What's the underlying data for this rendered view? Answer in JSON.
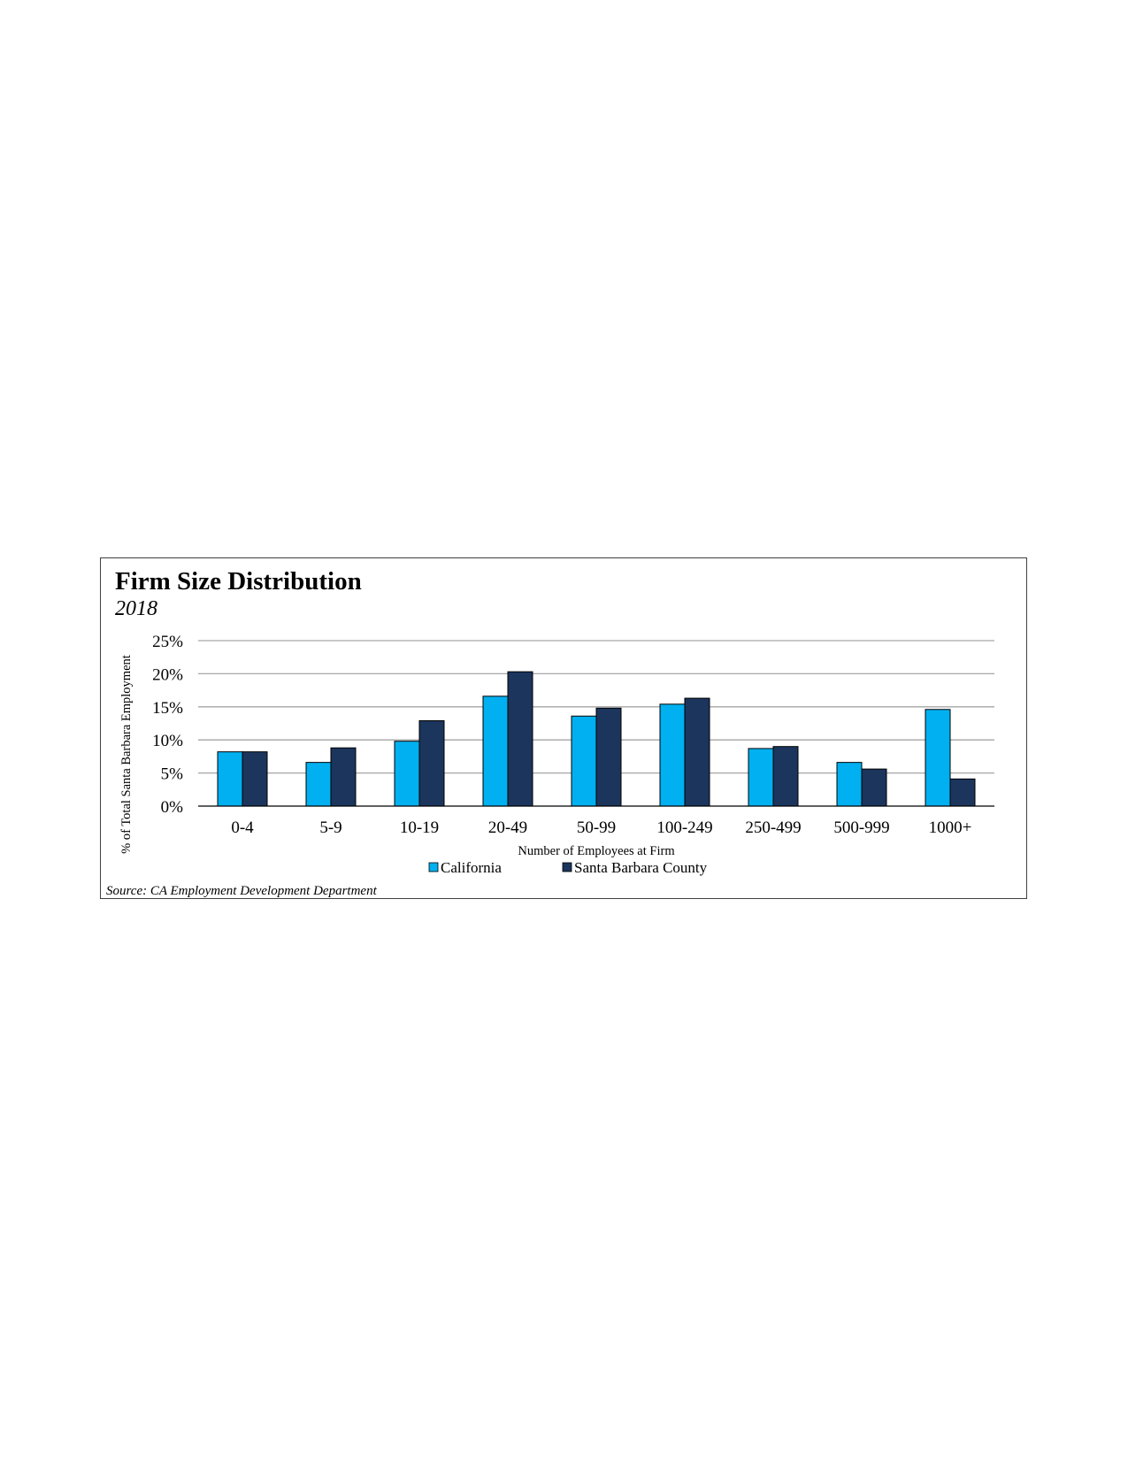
{
  "chart_data": {
    "type": "bar",
    "title": "Firm Size Distribution",
    "subtitle": "2018",
    "xlabel": "Number of Employees at Firm",
    "ylabel": "% of Total Santa Barbara Employment",
    "source": "Source: CA Employment Development Department",
    "categories": [
      "0-4",
      "5-9",
      "10-19",
      "20-49",
      "50-99",
      "100-249",
      "250-499",
      "500-999",
      "1000+"
    ],
    "series": [
      {
        "name": "California",
        "color": "#00b0f0",
        "values": [
          8.2,
          6.6,
          9.8,
          16.6,
          13.6,
          15.4,
          8.7,
          6.6,
          14.6
        ]
      },
      {
        "name": "Santa Barbara County",
        "color": "#1b355d",
        "values": [
          8.2,
          8.8,
          12.9,
          20.3,
          14.8,
          16.3,
          9.0,
          5.6,
          4.1
        ]
      }
    ],
    "ylim": [
      0,
      25
    ],
    "yticks": [
      "0%",
      "5%",
      "10%",
      "15%",
      "20%",
      "25%"
    ],
    "ytick_values": [
      0,
      5,
      10,
      15,
      20,
      25
    ],
    "grid": true,
    "legend_position": "bottom"
  }
}
